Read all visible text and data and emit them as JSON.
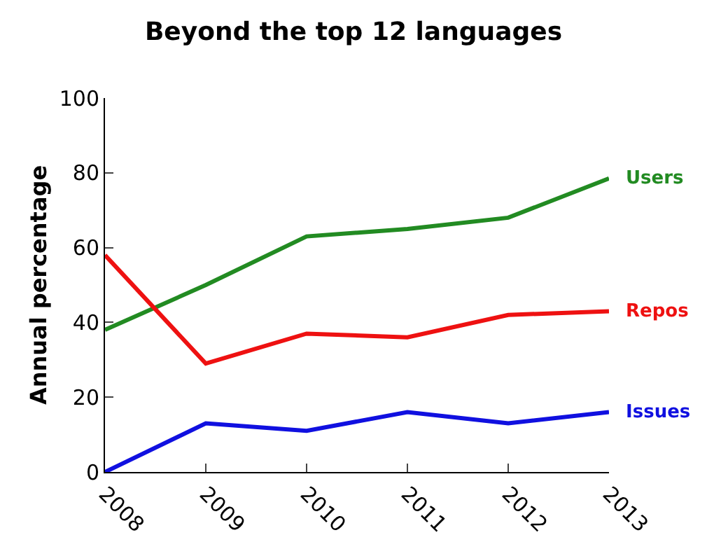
{
  "chart_data": {
    "type": "line",
    "title": "Beyond the top 12 languages",
    "ylabel": "Annual percentage",
    "x": [
      2008,
      2009,
      2010,
      2011,
      2012,
      2013
    ],
    "series": [
      {
        "name": "Users",
        "color": "#228b22",
        "values": [
          38,
          50,
          63,
          65,
          68,
          78.5
        ]
      },
      {
        "name": "Repos",
        "color": "#ee1111",
        "values": [
          58,
          29,
          37,
          36,
          42,
          43
        ]
      },
      {
        "name": "Issues",
        "color": "#1010e0",
        "values": [
          0,
          13,
          11,
          16,
          13,
          16
        ]
      }
    ],
    "xlim": [
      2008,
      2013
    ],
    "xticks": [
      2008,
      2009,
      2010,
      2011,
      2012,
      2013
    ],
    "ylim": [
      0,
      100
    ],
    "yticks": [
      0,
      20,
      40,
      60,
      80,
      100
    ],
    "grid": false,
    "legend": false,
    "marker": "none",
    "line_style": "solid"
  }
}
